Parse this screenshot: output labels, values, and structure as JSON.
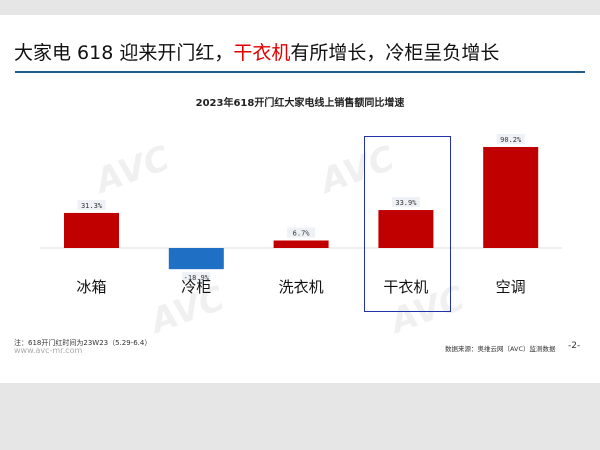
{
  "slide": {
    "title_parts": [
      "大家电 618 迎来开门红，",
      "干衣机",
      "有所增长，冷柜呈负增长"
    ],
    "note": "注：618开门红时间为23W23（5.29-6.4）",
    "url": "www.avc-mr.com",
    "source": "数据来源：奥维云网（AVC）监测数据",
    "page": "-2-",
    "watermark": "AVC 奥维云网 ALL VIEW CLOUD"
  },
  "chart_data": {
    "type": "bar",
    "title": "2023年618开门红大家电线上销售额同比增速",
    "categories": [
      "冰箱",
      "冷柜",
      "洗衣机",
      "干衣机",
      "空调"
    ],
    "values": [
      31.3,
      -18.9,
      6.7,
      33.9,
      90.2
    ],
    "value_labels": [
      "31.3%",
      "-18.9%",
      "6.7%",
      "33.9%",
      "90.2%"
    ],
    "unit": "%",
    "highlighted_category": "干衣机",
    "colors": {
      "positive": "#c00000",
      "negative": "#1f6fc5",
      "highlight_box": "#2233aa"
    },
    "grid": false
  }
}
